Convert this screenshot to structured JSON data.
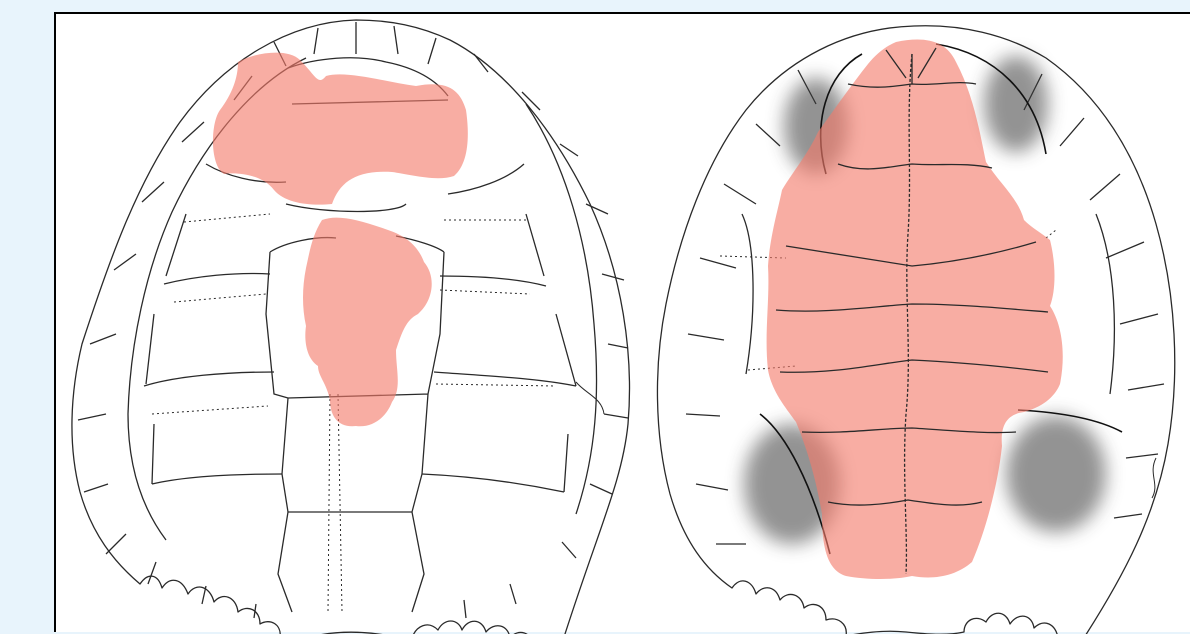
{
  "figure": {
    "panels": [
      {
        "view": "carapace",
        "highlight": "carapace-highlight"
      },
      {
        "view": "plastron",
        "highlight": "plastron-highlight"
      }
    ],
    "colors": {
      "background": "#e8f4fc",
      "canvas": "#ffffff",
      "line": "#2a2a2a",
      "highlight": "#f47a6b",
      "stipple": "#3a3a3a"
    }
  }
}
